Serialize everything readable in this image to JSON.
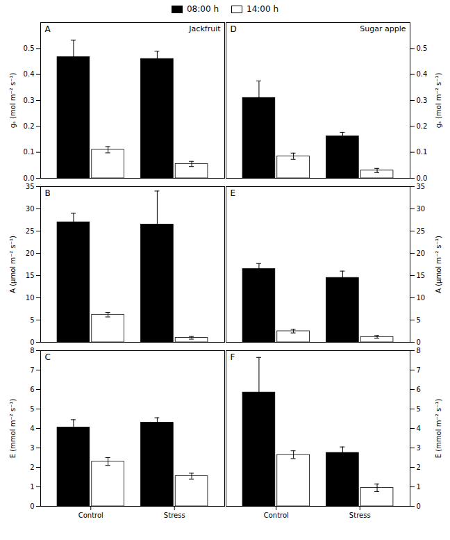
{
  "chart_data": [
    {
      "type": "bar",
      "title": "Jackfruit",
      "annotations": [
        "A"
      ],
      "categories": [
        "Control",
        "Stress"
      ],
      "series": [
        {
          "name": "08:00 h",
          "color": "#000000",
          "values": [
            0.467,
            0.46
          ],
          "errors": [
            0.065,
            0.03
          ]
        },
        {
          "name": "14:00 h",
          "color": "#ffffff",
          "values": [
            0.11,
            0.055
          ],
          "errors": [
            0.012,
            0.01
          ]
        }
      ],
      "ylabel": "gₛ (mol m⁻² s⁻¹)",
      "ylim": [
        0.0,
        0.6
      ],
      "yticks": [
        {
          "value": 0.0,
          "label": "0.0"
        },
        0.1,
        0.2,
        0.3,
        0.4,
        0.5
      ],
      "legend": "top",
      "tick_labels": "y"
    },
    {
      "type": "bar",
      "title": "Sugar apple",
      "annotations": [
        "D"
      ],
      "categories": [
        "Control",
        "Stress"
      ],
      "series": [
        {
          "name": "08:00 h",
          "color": "#000000",
          "values": [
            0.31,
            0.162
          ],
          "errors": [
            0.065,
            0.015
          ]
        },
        {
          "name": "14:00 h",
          "color": "#ffffff",
          "values": [
            0.085,
            0.03
          ],
          "errors": [
            0.012,
            0.008
          ]
        }
      ],
      "ylabel": "gₛ (mol m⁻² s⁻¹)",
      "ylim": [
        0.0,
        0.6
      ],
      "yticks": [
        {
          "value": 0.0,
          "label": "0.0"
        },
        0.1,
        0.2,
        0.3,
        0.4,
        0.5
      ],
      "legend": "top",
      "tick_labels": "y"
    },
    {
      "type": "bar",
      "annotations": [
        "B"
      ],
      "categories": [
        "Control",
        "Stress"
      ],
      "series": [
        {
          "name": "08:00 h",
          "color": "#000000",
          "values": [
            27.0,
            26.5
          ],
          "errors": [
            2.0,
            7.5
          ]
        },
        {
          "name": "14:00 h",
          "color": "#ffffff",
          "values": [
            6.2,
            1.0
          ],
          "errors": [
            0.5,
            0.3
          ]
        }
      ],
      "ylabel": "A (μmol m⁻² s⁻¹)",
      "ylim": [
        0,
        35
      ],
      "yticks": [
        0,
        5,
        10,
        15,
        20,
        25,
        30,
        35
      ],
      "legend": "top",
      "tick_labels": "y"
    },
    {
      "type": "bar",
      "annotations": [
        "E"
      ],
      "categories": [
        "Control",
        "Stress"
      ],
      "series": [
        {
          "name": "08:00 h",
          "color": "#000000",
          "values": [
            16.5,
            14.5
          ],
          "errors": [
            1.2,
            1.5
          ]
        },
        {
          "name": "14:00 h",
          "color": "#ffffff",
          "values": [
            2.5,
            1.2
          ],
          "errors": [
            0.4,
            0.3
          ]
        }
      ],
      "ylabel": "A (μmol m⁻² s⁻¹)",
      "ylim": [
        0,
        35
      ],
      "yticks": [
        0,
        5,
        10,
        15,
        20,
        25,
        30,
        35
      ],
      "legend": "top",
      "tick_labels": "y"
    },
    {
      "type": "bar",
      "annotations": [
        "C"
      ],
      "categories": [
        "Control",
        "Stress"
      ],
      "series": [
        {
          "name": "08:00 h",
          "color": "#000000",
          "values": [
            4.05,
            4.3
          ],
          "errors": [
            0.4,
            0.25
          ]
        },
        {
          "name": "14:00 h",
          "color": "#ffffff",
          "values": [
            2.3,
            1.55
          ],
          "errors": [
            0.2,
            0.15
          ]
        }
      ],
      "ylabel": "E (mmol m⁻² s⁻¹)",
      "ylim": [
        0,
        8
      ],
      "yticks": [
        0,
        1,
        2,
        3,
        4,
        5,
        6,
        7,
        8
      ],
      "legend": "top"
    },
    {
      "type": "bar",
      "annotations": [
        "F"
      ],
      "categories": [
        "Control",
        "Stress"
      ],
      "series": [
        {
          "name": "08:00 h",
          "color": "#000000",
          "values": [
            5.85,
            2.75
          ],
          "errors": [
            1.8,
            0.3
          ]
        },
        {
          "name": "14:00 h",
          "color": "#ffffff",
          "values": [
            2.65,
            0.95
          ],
          "errors": [
            0.2,
            0.2
          ]
        }
      ],
      "ylabel": "E (mmol m⁻² s⁻¹)",
      "ylim": [
        0,
        8
      ],
      "yticks": [
        0,
        1,
        2,
        3,
        4,
        5,
        6,
        7,
        8
      ],
      "legend": "top"
    }
  ]
}
